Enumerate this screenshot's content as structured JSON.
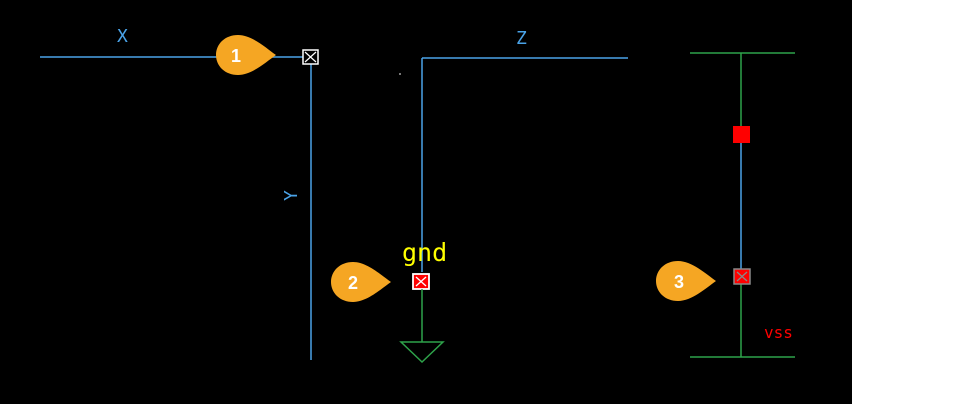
{
  "schematic": {
    "wire_color": "#4aa3e8",
    "ground_color": "#2ea34a",
    "label_color": "#4aa3e8",
    "error_color": "#ff0000",
    "highlight_label_color": "#ffff00",
    "callout_color": "#f5a623",
    "wires": {
      "x_label": "X",
      "y_label": "Y",
      "z_label": "Z"
    },
    "net_labels": {
      "gnd": "gnd",
      "vss": "vss"
    },
    "callouts": [
      {
        "number": "1"
      },
      {
        "number": "2"
      },
      {
        "number": "3"
      }
    ]
  }
}
